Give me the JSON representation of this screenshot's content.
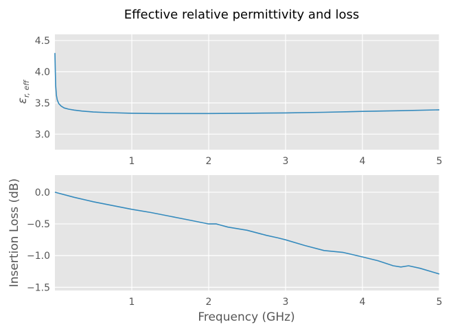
{
  "chart_data": {
    "title": "Effective relative permittivity and loss",
    "xlabel": "Frequency (GHz)",
    "colors": {
      "series": "#348abd",
      "background": "#e5e5e5",
      "grid": "#ffffff",
      "tick": "#555555"
    },
    "subplots": [
      {
        "type": "line",
        "ylabel": "ε",
        "ylabel_sub": "r, eff",
        "xlim": [
          0.0,
          5.0
        ],
        "ylim": [
          2.75,
          4.6
        ],
        "xticks": [
          1,
          2,
          3,
          4,
          5
        ],
        "yticks": [
          3.0,
          3.5,
          4.0,
          4.5
        ],
        "ytick_labels": [
          "3.0",
          "3.5",
          "4.0",
          "4.5"
        ],
        "grid": true,
        "series": [
          {
            "x": [
              0.0,
              0.005,
              0.01,
              0.02,
              0.03,
              0.05,
              0.08,
              0.12,
              0.18,
              0.25,
              0.35,
              0.5,
              0.7,
              1.0,
              1.3,
              1.6,
              2.0,
              2.5,
              3.0,
              3.5,
              4.0,
              4.5,
              5.0
            ],
            "y": [
              4.3,
              4.0,
              3.78,
              3.62,
              3.55,
              3.49,
              3.45,
              3.42,
              3.4,
              3.385,
              3.37,
              3.355,
              3.345,
              3.335,
              3.33,
              3.33,
              3.33,
              3.335,
              3.34,
              3.35,
              3.365,
              3.375,
              3.39
            ]
          }
        ]
      },
      {
        "type": "line",
        "ylabel": "Insertion Loss (dB)",
        "xlim": [
          0.0,
          5.0
        ],
        "ylim": [
          -1.55,
          0.27
        ],
        "xticks": [
          1,
          2,
          3,
          4,
          5
        ],
        "yticks": [
          0.0,
          -0.5,
          -1.0,
          -1.5
        ],
        "ytick_labels": [
          "0.0",
          "−0.5",
          "−1.0",
          "−1.5"
        ],
        "grid": true,
        "series": [
          {
            "x": [
              0.0,
              0.25,
              0.5,
              0.75,
              1.0,
              1.25,
              1.5,
              1.75,
              2.0,
              2.1,
              2.25,
              2.5,
              2.75,
              2.9,
              3.0,
              3.25,
              3.5,
              3.75,
              4.0,
              4.2,
              4.4,
              4.5,
              4.6,
              4.75,
              5.0
            ],
            "y": [
              0.0,
              -0.08,
              -0.15,
              -0.21,
              -0.27,
              -0.32,
              -0.38,
              -0.44,
              -0.5,
              -0.5,
              -0.55,
              -0.6,
              -0.68,
              -0.72,
              -0.75,
              -0.84,
              -0.92,
              -0.95,
              -1.02,
              -1.08,
              -1.16,
              -1.18,
              -1.16,
              -1.2,
              -1.29
            ]
          }
        ]
      }
    ],
    "x_tick_labels": [
      "1",
      "2",
      "3",
      "4",
      "5"
    ]
  }
}
